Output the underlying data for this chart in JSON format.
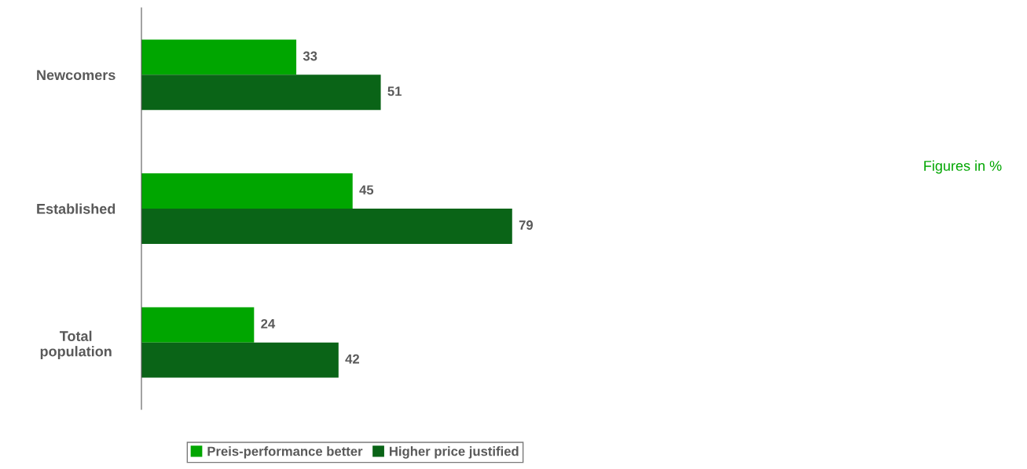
{
  "chart_data": {
    "type": "bar",
    "orientation": "horizontal",
    "categories": [
      "Newcomers",
      "Established",
      "Total\npopulation"
    ],
    "series": [
      {
        "name": "Preis-performance better",
        "color": "#00a600",
        "values": [
          33,
          45,
          24
        ]
      },
      {
        "name": "Higher price justified",
        "color": "#0a6417",
        "values": [
          51,
          79,
          42
        ]
      }
    ],
    "data_labels": true,
    "legend": "bottom",
    "grid": false,
    "annotations": [
      "Figures in %"
    ]
  }
}
